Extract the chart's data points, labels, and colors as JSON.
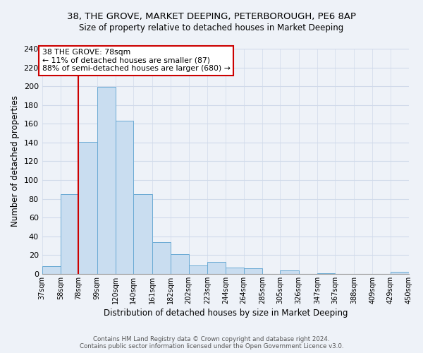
{
  "title": "38, THE GROVE, MARKET DEEPING, PETERBOROUGH, PE6 8AP",
  "subtitle": "Size of property relative to detached houses in Market Deeping",
  "xlabel": "Distribution of detached houses by size in Market Deeping",
  "ylabel": "Number of detached properties",
  "bin_edges": [
    37,
    58,
    78,
    99,
    120,
    140,
    161,
    182,
    202,
    223,
    244,
    264,
    285,
    305,
    326,
    347,
    367,
    388,
    409,
    429,
    450
  ],
  "bar_heights": [
    8,
    85,
    141,
    199,
    163,
    85,
    34,
    21,
    9,
    13,
    7,
    6,
    0,
    4,
    0,
    1,
    0,
    0,
    0,
    2
  ],
  "bar_color": "#c9ddf0",
  "bar_edge_color": "#6aaad4",
  "marker_value": 78,
  "marker_color": "#cc0000",
  "annotation_text": "38 THE GROVE: 78sqm\n← 11% of detached houses are smaller (87)\n88% of semi-detached houses are larger (680) →",
  "annotation_box_color": "#ffffff",
  "annotation_box_edge": "#cc0000",
  "ylim": [
    0,
    240
  ],
  "yticks": [
    0,
    20,
    40,
    60,
    80,
    100,
    120,
    140,
    160,
    180,
    200,
    220,
    240
  ],
  "tick_labels": [
    "37sqm",
    "58sqm",
    "78sqm",
    "99sqm",
    "120sqm",
    "140sqm",
    "161sqm",
    "182sqm",
    "202sqm",
    "223sqm",
    "244sqm",
    "264sqm",
    "285sqm",
    "305sqm",
    "326sqm",
    "347sqm",
    "367sqm",
    "388sqm",
    "409sqm",
    "429sqm",
    "450sqm"
  ],
  "footer_line1": "Contains HM Land Registry data © Crown copyright and database right 2024.",
  "footer_line2": "Contains public sector information licensed under the Open Government Licence v3.0.",
  "background_color": "#eef2f8",
  "grid_color": "#d0daea"
}
